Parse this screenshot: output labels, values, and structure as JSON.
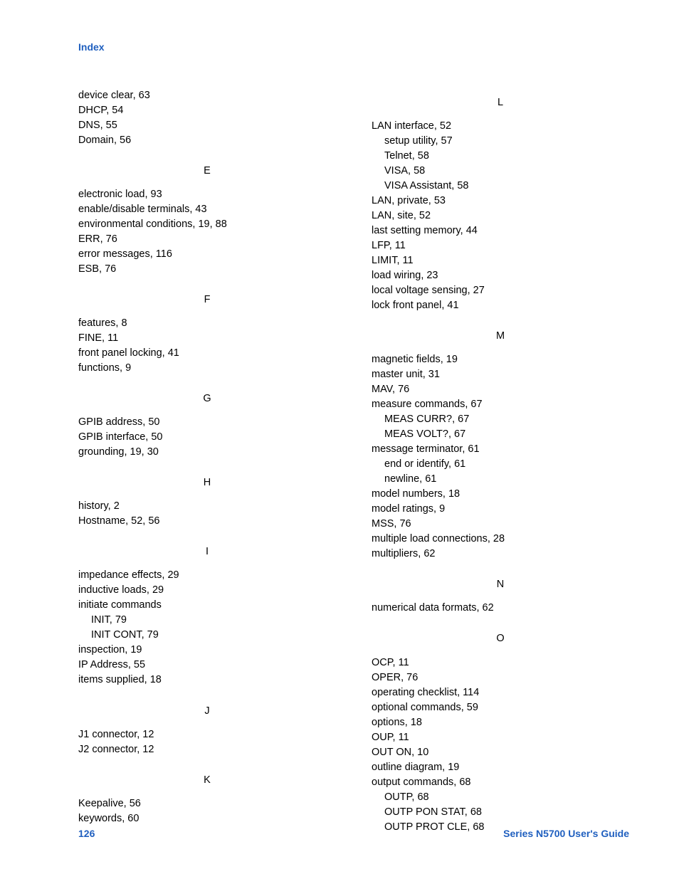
{
  "header": "Index",
  "footer": {
    "page": "126",
    "title": "Series N5700 User's Guide"
  },
  "left": {
    "preD": [
      "device clear, 63",
      "DHCP, 54",
      "DNS, 55",
      "Domain, 56"
    ],
    "E": {
      "letter": "E",
      "items": [
        "electronic load, 93",
        "enable/disable terminals, 43",
        "environmental conditions, 19, 88",
        "ERR, 76",
        "error messages, 116",
        "ESB, 76"
      ]
    },
    "F": {
      "letter": "F",
      "items": [
        "features, 8",
        "FINE, 11",
        "front panel locking, 41",
        "functions, 9"
      ]
    },
    "G": {
      "letter": "G",
      "items": [
        "GPIB address, 50",
        "GPIB interface, 50",
        "grounding, 19, 30"
      ]
    },
    "H": {
      "letter": "H",
      "items": [
        "history, 2",
        "Hostname, 52, 56"
      ]
    },
    "I": {
      "letter": "I",
      "items": [
        {
          "t": "impedance effects, 29"
        },
        {
          "t": "inductive loads, 29"
        },
        {
          "t": "initiate commands"
        },
        {
          "t": "INIT, 79",
          "sub": true
        },
        {
          "t": "INIT CONT, 79",
          "sub": true
        },
        {
          "t": "inspection, 19"
        },
        {
          "t": "IP Address, 55"
        },
        {
          "t": "items supplied, 18"
        }
      ]
    },
    "J": {
      "letter": "J",
      "items": [
        "J1 connector, 12",
        "J2 connector, 12"
      ]
    },
    "K": {
      "letter": "K",
      "items": [
        "Keepalive, 56",
        "keywords, 60"
      ]
    }
  },
  "right": {
    "L": {
      "letter": "L",
      "items": [
        {
          "t": "LAN interface, 52"
        },
        {
          "t": "setup utility, 57",
          "sub": true
        },
        {
          "t": "Telnet, 58",
          "sub": true
        },
        {
          "t": "VISA, 58",
          "sub": true
        },
        {
          "t": "VISA Assistant, 58",
          "sub": true
        },
        {
          "t": "LAN, private, 53"
        },
        {
          "t": "LAN, site, 52"
        },
        {
          "t": "last setting memory, 44"
        },
        {
          "t": "LFP, 11"
        },
        {
          "t": "LIMIT, 11"
        },
        {
          "t": "load wiring, 23"
        },
        {
          "t": "local voltage sensing, 27"
        },
        {
          "t": "lock front panel, 41"
        }
      ]
    },
    "M": {
      "letter": "M",
      "items": [
        {
          "t": "magnetic fields, 19"
        },
        {
          "t": "master unit, 31"
        },
        {
          "t": "MAV, 76"
        },
        {
          "t": "measure commands, 67"
        },
        {
          "t": "MEAS CURR?, 67",
          "sub": true
        },
        {
          "t": "MEAS VOLT?, 67",
          "sub": true
        },
        {
          "t": "message terminator, 61"
        },
        {
          "t": "end or identify, 61",
          "sub": true
        },
        {
          "t": "newline, 61",
          "sub": true
        },
        {
          "t": "model numbers, 18"
        },
        {
          "t": "model ratings, 9"
        },
        {
          "t": "MSS, 76"
        },
        {
          "t": "multiple load connections, 28"
        },
        {
          "t": "multipliers, 62"
        }
      ]
    },
    "N": {
      "letter": "N",
      "items": [
        {
          "t": "numerical data formats, 62"
        }
      ]
    },
    "O": {
      "letter": "O",
      "items": [
        {
          "t": "OCP, 11"
        },
        {
          "t": "OPER, 76"
        },
        {
          "t": "operating checklist, 114"
        },
        {
          "t": "optional commands, 59"
        },
        {
          "t": "options, 18"
        },
        {
          "t": "OUP, 11"
        },
        {
          "t": "OUT ON, 10"
        },
        {
          "t": "outline diagram, 19"
        },
        {
          "t": "output commands, 68"
        },
        {
          "t": "OUTP, 68",
          "sub": true
        },
        {
          "t": "OUTP PON STAT, 68",
          "sub": true
        },
        {
          "t": "OUTP PROT CLE, 68",
          "sub": true
        }
      ]
    }
  }
}
